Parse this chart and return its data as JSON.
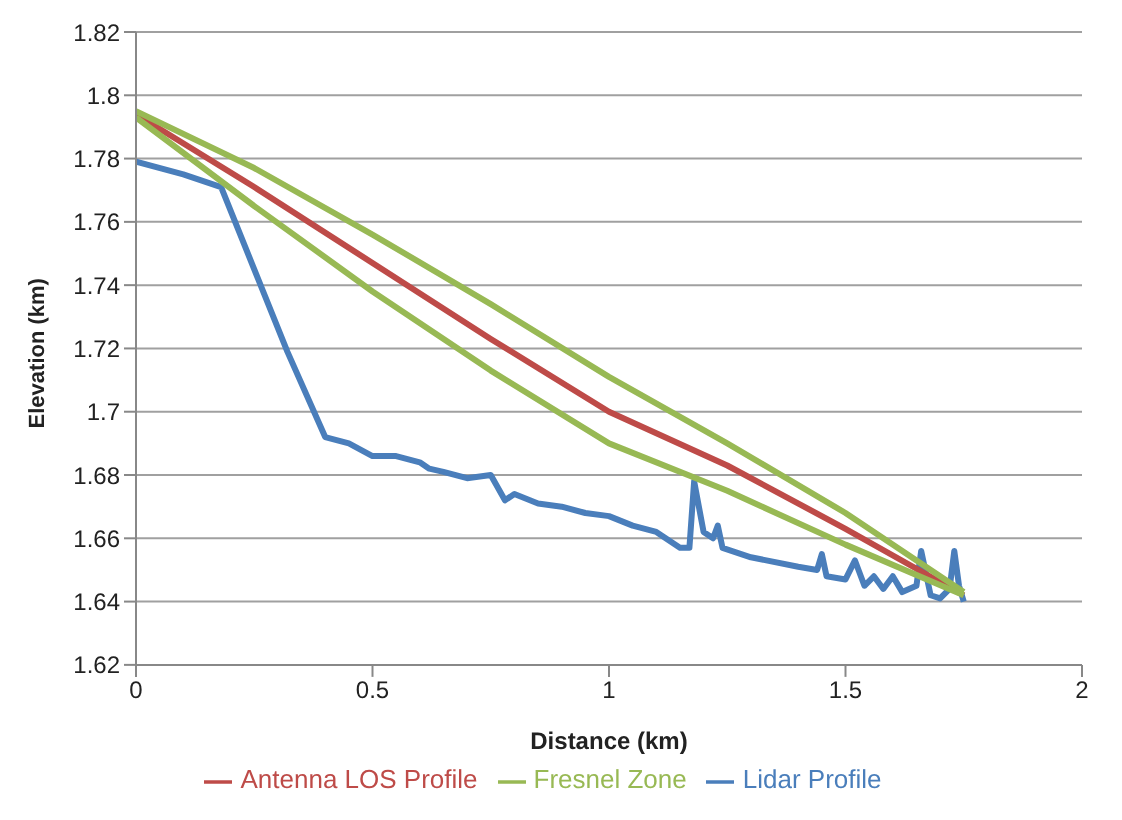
{
  "chart_data": {
    "type": "line",
    "xlabel": "Distance (km)",
    "ylabel": "Elevation (km)",
    "xlim": [
      0,
      2
    ],
    "xticks": [
      0,
      0.5,
      1,
      1.5,
      2
    ],
    "ylim": [
      1.62,
      1.82
    ],
    "yticks": [
      1.62,
      1.64,
      1.66,
      1.68,
      1.7,
      1.72,
      1.74,
      1.76,
      1.78,
      1.8,
      1.82
    ],
    "grid": "y",
    "legend": "bottom",
    "marker": "none",
    "line_style": "solid",
    "series": [
      {
        "name": "Lidar Profile",
        "color": "#4a7ebb",
        "x": [
          0,
          0.1,
          0.18,
          0.25,
          0.32,
          0.4,
          0.45,
          0.5,
          0.55,
          0.6,
          0.62,
          0.65,
          0.7,
          0.75,
          0.78,
          0.8,
          0.85,
          0.9,
          0.95,
          1.0,
          1.05,
          1.1,
          1.15,
          1.17,
          1.18,
          1.2,
          1.22,
          1.23,
          1.24,
          1.3,
          1.4,
          1.44,
          1.45,
          1.46,
          1.5,
          1.52,
          1.54,
          1.56,
          1.58,
          1.6,
          1.62,
          1.65,
          1.66,
          1.68,
          1.7,
          1.72,
          1.73,
          1.74,
          1.75
        ],
        "values": [
          1.779,
          1.775,
          1.771,
          1.745,
          1.719,
          1.692,
          1.69,
          1.686,
          1.686,
          1.684,
          1.682,
          1.681,
          1.679,
          1.68,
          1.672,
          1.674,
          1.671,
          1.67,
          1.668,
          1.667,
          1.664,
          1.662,
          1.657,
          1.657,
          1.678,
          1.662,
          1.66,
          1.664,
          1.657,
          1.654,
          1.651,
          1.65,
          1.655,
          1.648,
          1.647,
          1.653,
          1.645,
          1.648,
          1.644,
          1.648,
          1.643,
          1.645,
          1.656,
          1.642,
          1.641,
          1.644,
          1.656,
          1.645,
          1.64
        ]
      },
      {
        "name": "Antenna LOS  Profile",
        "color": "#be4b48",
        "x": [
          0,
          0.25,
          0.5,
          0.75,
          1,
          1.25,
          1.5,
          1.75
        ],
        "values": [
          1.794,
          1.771,
          1.747,
          1.723,
          1.7,
          1.683,
          1.663,
          1.642
        ]
      },
      {
        "name": "Fresnel Zone",
        "color": "#98b954",
        "x": [
          0,
          0.25,
          0.5,
          0.75,
          1,
          1.25,
          1.5,
          1.75
        ],
        "values": [
          1.795,
          1.777,
          1.756,
          1.734,
          1.711,
          1.69,
          1.668,
          1.643
        ]
      },
      {
        "color": "#98b954",
        "x": [
          0,
          0.25,
          0.5,
          0.75,
          1,
          1.25,
          1.5,
          1.75
        ],
        "values": [
          1.793,
          1.765,
          1.738,
          1.713,
          1.69,
          1.675,
          1.658,
          1.642
        ]
      }
    ]
  }
}
